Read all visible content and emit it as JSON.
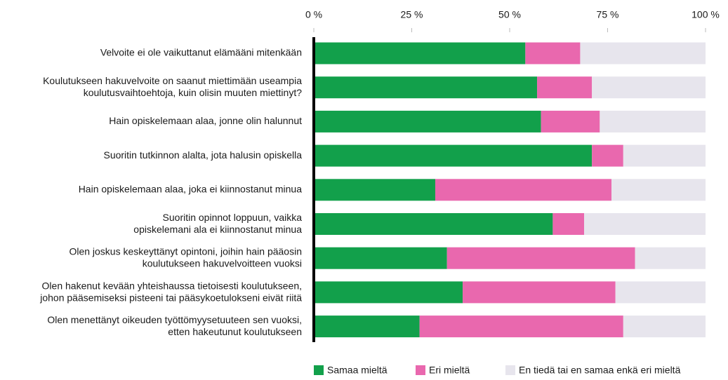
{
  "chart_data": {
    "type": "stacked-bar-horizontal",
    "categories": [
      "Velvoite ei ole vaikuttanut elämääni mitenkään",
      "Koulutukseen hakuvelvoite on saanut miettimään useampia\nkoulutusvaihtoehtoja, kuin olisin muuten miettinyt?",
      "Hain opiskelemaan alaa, jonne olin halunnut",
      "Suoritin tutkinnon alalta, jota halusin opiskella",
      "Hain opiskelemaan alaa, joka ei kiinnostanut minua",
      "Suoritin opinnot loppuun, vaikka\nopiskelemani ala ei kiinnostanut minua",
      "Olen joskus keskeyttänyt opintoni, joihin hain pääosin\nkoulutukseen hakuvelvoitteen vuoksi",
      "Olen hakenut kevään yhteishaussa tietoisesti koulutukseen,\njohon pääsemiseksi pisteeni tai pääsykoetulokseni eivät riitä",
      "Olen menettänyt oikeuden työttömyysetuuteen sen vuoksi,\netten hakeutunut koulutukseen"
    ],
    "series": [
      {
        "name": "Samaa mieltä",
        "color": "#12a04b",
        "values": [
          54,
          57,
          58,
          71,
          31,
          61,
          34,
          38,
          27
        ]
      },
      {
        "name": "Eri mieltä",
        "color": "#e968ae",
        "values": [
          14,
          14,
          15,
          8,
          45,
          8,
          48,
          39,
          52
        ]
      },
      {
        "name": "En tiedä tai en samaa enkä eri mieltä",
        "color": "#e7e5ed",
        "values": [
          32,
          29,
          27,
          21,
          24,
          31,
          18,
          23,
          21
        ]
      }
    ],
    "xlim": [
      0,
      100
    ],
    "xticks": [
      {
        "value": 0,
        "label": "0 %"
      },
      {
        "value": 25,
        "label": "25 %"
      },
      {
        "value": 50,
        "label": "50 %"
      },
      {
        "value": 75,
        "label": "75 %"
      },
      {
        "value": 100,
        "label": "100 %"
      }
    ],
    "grid": false,
    "legend": "bottom"
  }
}
